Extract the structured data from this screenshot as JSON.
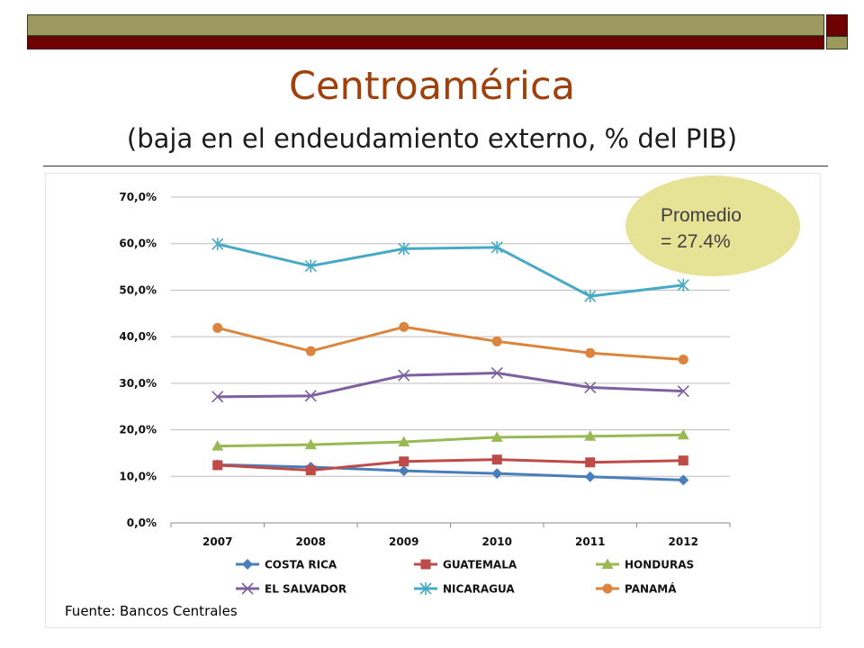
{
  "header": {
    "title": "Centroamérica",
    "subtitle": "(baja en el endeudamiento externo, % del PIB)"
  },
  "callout": {
    "line1": "Promedio",
    "line2": "= 27.4%"
  },
  "source": "Fuente: Bancos Centrales",
  "colors": {
    "title": "#a0410d",
    "band_olive": "#9d9a5f",
    "band_maroon": "#6e0000",
    "callout_fill": "#e6e296"
  },
  "chart_data": {
    "type": "line",
    "categories": [
      "2007",
      "2008",
      "2009",
      "2010",
      "2011",
      "2012"
    ],
    "ylim": [
      0,
      70
    ],
    "yticks": [
      "0,0%",
      "10,0%",
      "20,0%",
      "30,0%",
      "40,0%",
      "50,0%",
      "60,0%",
      "70,0%"
    ],
    "grid": true,
    "legend_position": "bottom",
    "series": [
      {
        "name": "COSTA RICA",
        "color": "#4a7ebb",
        "marker": "diamond",
        "values": [
          12.5,
          12.0,
          11.2,
          10.6,
          9.9,
          9.2
        ]
      },
      {
        "name": "GUATEMALA",
        "color": "#be4b48",
        "marker": "square",
        "values": [
          12.4,
          11.3,
          13.2,
          13.6,
          13.0,
          13.4
        ]
      },
      {
        "name": "HONDURAS",
        "color": "#98b954",
        "marker": "triangle",
        "values": [
          16.5,
          16.8,
          17.4,
          18.4,
          18.6,
          18.9
        ]
      },
      {
        "name": "EL SALVADOR",
        "color": "#7d60a0",
        "marker": "x",
        "values": [
          27.1,
          27.3,
          31.7,
          32.2,
          29.1,
          28.3
        ]
      },
      {
        "name": "NICARAGUA",
        "color": "#46aac5",
        "marker": "star",
        "values": [
          59.9,
          55.2,
          58.9,
          59.2,
          48.7,
          51.1
        ]
      },
      {
        "name": "PANAMÁ",
        "color": "#db843d",
        "marker": "circle",
        "values": [
          41.9,
          36.9,
          42.1,
          39.0,
          36.5,
          35.1
        ]
      }
    ]
  }
}
